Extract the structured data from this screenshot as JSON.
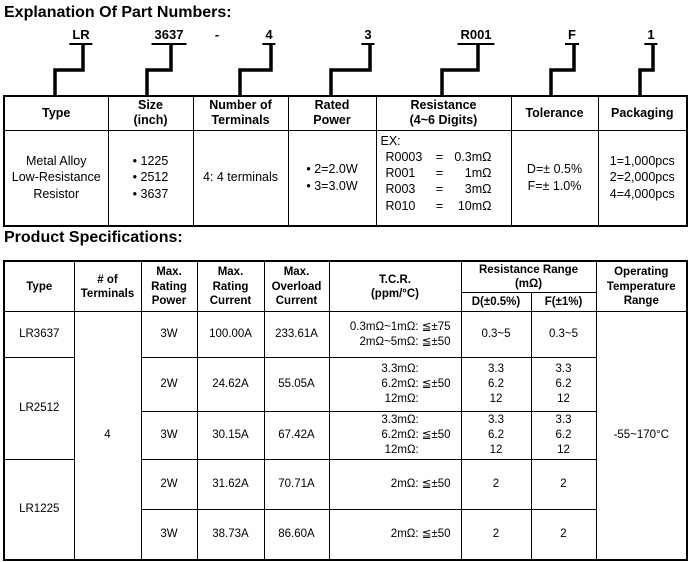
{
  "page": {
    "title1": "Explanation Of Part Numbers:",
    "title2": "Product Specifications:"
  },
  "part_number": {
    "segments": [
      "LR",
      "3637",
      "-",
      "4",
      "3",
      "R001",
      "F",
      "1"
    ]
  },
  "part_table": {
    "headers": {
      "type": [
        "Type"
      ],
      "size": [
        "Size",
        "(inch)"
      ],
      "terminals": [
        "Number of",
        "Terminals"
      ],
      "power": [
        "Rated",
        "Power"
      ],
      "resistance": [
        "Resistance",
        "(4~6 Digits)"
      ],
      "tolerance": [
        "Tolerance"
      ],
      "packaging": [
        "Packaging"
      ]
    },
    "type_lines": [
      "Metal Alloy",
      "Low-Resistance",
      "Resistor"
    ],
    "sizes": [
      "• 1225",
      "• 2512",
      "• 3637"
    ],
    "terminals": "4: 4 terminals",
    "power_options": [
      "• 2=2.0W",
      "• 3=3.0W"
    ],
    "resistance_ex": {
      "label": "EX:",
      "rows": [
        {
          "code": "R0003",
          "eq": "=",
          "val": "0.3mΩ"
        },
        {
          "code": "R001",
          "eq": "=",
          "val": "1mΩ"
        },
        {
          "code": "R003",
          "eq": "=",
          "val": "3mΩ"
        },
        {
          "code": "R010",
          "eq": "=",
          "val": "10mΩ"
        }
      ]
    },
    "tolerance_lines": [
      "D=± 0.5%",
      "F=± 1.0%"
    ],
    "packaging_lines": [
      "1=1,000pcs",
      "2=2,000pcs",
      "4=4,000pcs"
    ]
  },
  "spec_table": {
    "headers": {
      "type": [
        "Type"
      ],
      "terminals": [
        "# of",
        "Terminals"
      ],
      "power": [
        "Max.",
        "Rating",
        "Power"
      ],
      "current": [
        "Max.",
        "Rating",
        "Current"
      ],
      "overload": [
        "Max.",
        "Overload",
        "Current"
      ],
      "tcr": [
        "T.C.R.",
        "(ppm/°C)"
      ],
      "rr_title": [
        "Resistance Range",
        "(mΩ)"
      ],
      "rr_d": "D(±0.5%)",
      "rr_f": "F(±1%)",
      "operating": [
        "Operating",
        "Temperature",
        "Range"
      ]
    },
    "terminals_value": "4",
    "operating_value": "-55~170°C",
    "rows": [
      {
        "type": "LR3637",
        "power": "3W",
        "current": "100.00A",
        "overload": "233.61A",
        "tcr_lines": [
          "0.3mΩ~1mΩ: ≦±75",
          "2mΩ~5mΩ: ≦±50"
        ],
        "d": [
          "0.3~5"
        ],
        "f": [
          "0.3~5"
        ]
      },
      {
        "type": "LR2512",
        "power": "2W",
        "current": "24.62A",
        "overload": "55.05A",
        "tcr_labels": [
          "3.3mΩ:",
          "6.2mΩ:",
          "12mΩ:"
        ],
        "tcr_value": "≦±50",
        "d": [
          "3.3",
          "6.2",
          "12"
        ],
        "f": [
          "3.3",
          "6.2",
          "12"
        ]
      },
      {
        "power": "3W",
        "current": "30.15A",
        "overload": "67.42A",
        "tcr_labels": [
          "3.3mΩ:",
          "6.2mΩ:",
          "12mΩ:"
        ],
        "tcr_value": "≦±50",
        "d": [
          "3.3",
          "6.2",
          "12"
        ],
        "f": [
          "3.3",
          "6.2",
          "12"
        ]
      },
      {
        "type": "LR1225",
        "power": "2W",
        "current": "31.62A",
        "overload": "70.71A",
        "tcr_lines": [
          "2mΩ: ≦±50"
        ],
        "d": [
          "2"
        ],
        "f": [
          "2"
        ]
      },
      {
        "power": "3W",
        "current": "38.73A",
        "overload": "86.60A",
        "tcr_lines": [
          "2mΩ: ≦±50"
        ],
        "d": [
          "2"
        ],
        "f": [
          "2"
        ]
      }
    ]
  }
}
